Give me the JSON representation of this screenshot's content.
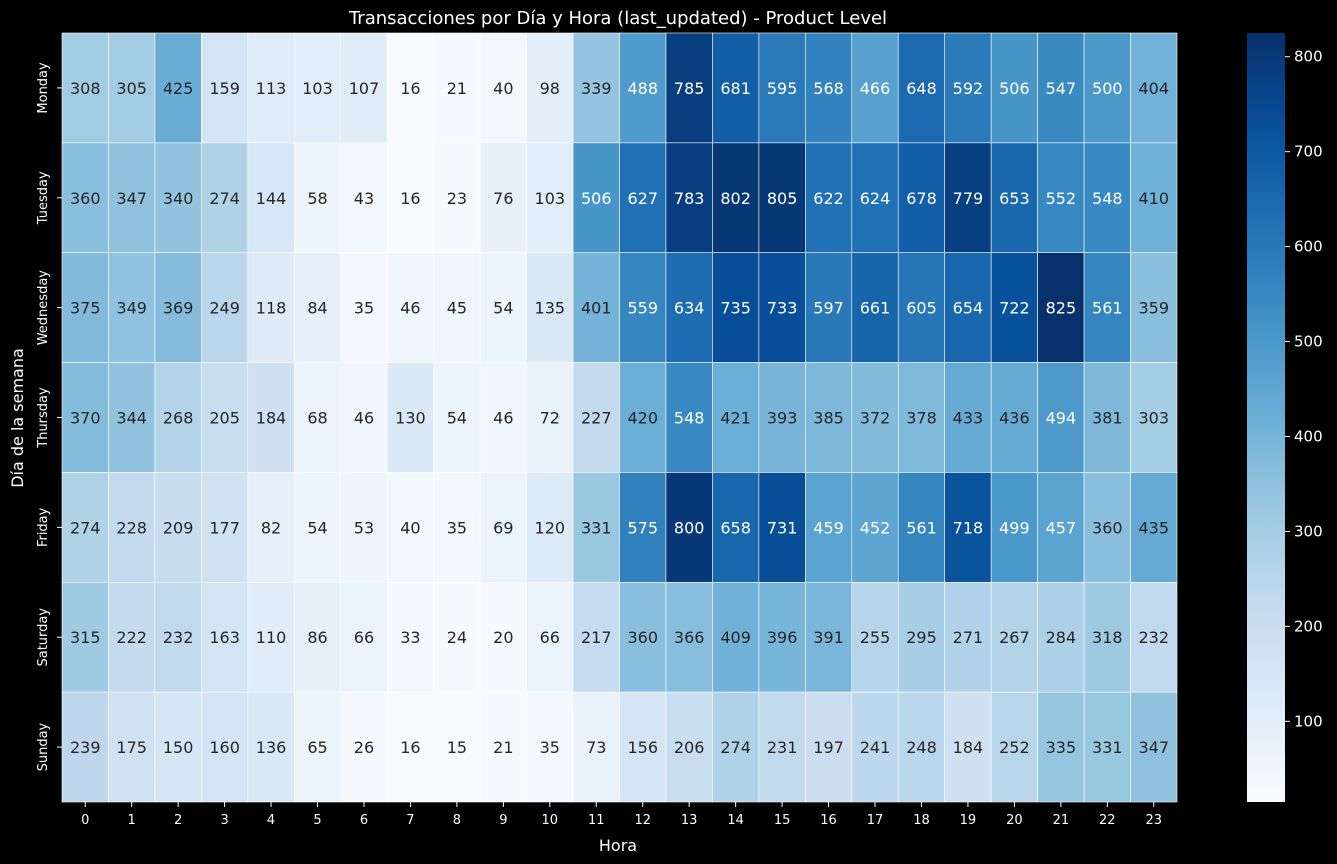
{
  "chart_data": {
    "type": "heatmap",
    "title": "Transacciones por Día y Hora (last_updated) - Product Level",
    "xlabel": "Hora",
    "ylabel": "Día de la semana",
    "x_categories": [
      "0",
      "1",
      "2",
      "3",
      "4",
      "5",
      "6",
      "7",
      "8",
      "9",
      "10",
      "11",
      "12",
      "13",
      "14",
      "15",
      "16",
      "17",
      "18",
      "19",
      "20",
      "21",
      "22",
      "23"
    ],
    "y_categories": [
      "Monday",
      "Tuesday",
      "Wednesday",
      "Thursday",
      "Friday",
      "Saturday",
      "Sunday"
    ],
    "values": [
      [
        308,
        305,
        425,
        159,
        113,
        103,
        107,
        16,
        21,
        40,
        98,
        339,
        488,
        785,
        681,
        595,
        568,
        466,
        648,
        592,
        506,
        547,
        500,
        404
      ],
      [
        360,
        347,
        340,
        274,
        144,
        58,
        43,
        16,
        23,
        76,
        103,
        506,
        627,
        783,
        802,
        805,
        622,
        624,
        678,
        779,
        653,
        552,
        548,
        410
      ],
      [
        375,
        349,
        369,
        249,
        118,
        84,
        35,
        46,
        45,
        54,
        135,
        401,
        559,
        634,
        735,
        733,
        597,
        661,
        605,
        654,
        722,
        825,
        561,
        359
      ],
      [
        370,
        344,
        268,
        205,
        184,
        68,
        46,
        130,
        54,
        46,
        72,
        227,
        420,
        548,
        421,
        393,
        385,
        372,
        378,
        433,
        436,
        494,
        381,
        303
      ],
      [
        274,
        228,
        209,
        177,
        82,
        54,
        53,
        40,
        35,
        69,
        120,
        331,
        575,
        800,
        658,
        731,
        459,
        452,
        561,
        718,
        499,
        457,
        360,
        435
      ],
      [
        315,
        222,
        232,
        163,
        110,
        86,
        66,
        33,
        24,
        20,
        66,
        217,
        360,
        366,
        409,
        396,
        391,
        255,
        295,
        271,
        267,
        284,
        318,
        232
      ],
      [
        239,
        175,
        150,
        160,
        136,
        65,
        26,
        16,
        15,
        21,
        35,
        73,
        156,
        206,
        274,
        231,
        197,
        241,
        248,
        184,
        252,
        335,
        331,
        347
      ]
    ],
    "colormap": "Blues",
    "vmin": 15,
    "vmax": 825,
    "colorbar_ticks": [
      "100",
      "200",
      "300",
      "400",
      "500",
      "600",
      "700",
      "800"
    ],
    "colorbar_tick_values": [
      100,
      200,
      300,
      400,
      500,
      600,
      700,
      800
    ],
    "background_color": "#000000",
    "text_color": "#ffffff"
  }
}
